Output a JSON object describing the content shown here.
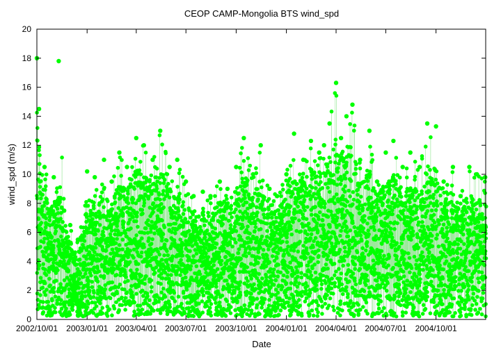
{
  "chart_data": {
    "type": "scatter",
    "title": "CEOP CAMP-Mongolia BTS  wind_spd",
    "xlabel": "Date",
    "ylabel": "wind_spd (m/s)",
    "ylim": [
      0,
      20
    ],
    "xlim": [
      "2002-10-01",
      "2004-12-31"
    ],
    "y_ticks": [
      "0",
      "2",
      "4",
      "6",
      "8",
      "10",
      "12",
      "14",
      "16",
      "18",
      "20"
    ],
    "x_ticks": [
      "2002/10/01",
      "2003/01/01",
      "2003/04/01",
      "2003/07/01",
      "2003/10/01",
      "2004/01/01",
      "2004/04/01",
      "2004/07/01",
      "2004/10/01"
    ],
    "grid": false,
    "legend": "none",
    "marker": "filled circle with connecting line",
    "series_color": "#00ff00",
    "line_color": "#9be89b",
    "series": [
      {
        "x": [
          "2002-10-01",
          "2002-10-05",
          "2002-10-15",
          "2002-11-01",
          "2002-11-10",
          "2002-11-20",
          "2002-12-01",
          "2002-12-15",
          "2003-01-01",
          "2003-01-15",
          "2003-02-01",
          "2003-02-15",
          "2003-03-01",
          "2003-03-15",
          "2003-04-01",
          "2003-04-15",
          "2003-05-01",
          "2003-05-15",
          "2003-06-01",
          "2003-06-15",
          "2003-07-01",
          "2003-07-15",
          "2003-08-01",
          "2003-08-15",
          "2003-09-01",
          "2003-09-15",
          "2003-10-01",
          "2003-10-15",
          "2003-11-01",
          "2003-11-15",
          "2003-12-01",
          "2003-12-15",
          "2004-01-01",
          "2004-01-15",
          "2004-02-01",
          "2004-02-15",
          "2004-03-01",
          "2004-03-10",
          "2004-03-20",
          "2004-04-01",
          "2004-04-10",
          "2004-04-20",
          "2004-05-01",
          "2004-05-15",
          "2004-06-01",
          "2004-06-15",
          "2004-07-01",
          "2004-07-15",
          "2004-08-01",
          "2004-08-15",
          "2004-09-01",
          "2004-09-15",
          "2004-10-01",
          "2004-10-15",
          "2004-11-01",
          "2004-11-15",
          "2004-12-01",
          "2004-12-15",
          "2004-12-30"
        ],
        "max": [
          18.0,
          14.5,
          10.5,
          9.8,
          17.8,
          7.5,
          6.5,
          5.5,
          10.2,
          9.8,
          11.0,
          9.5,
          11.5,
          10.5,
          12.5,
          12.0,
          11.0,
          13.0,
          10.5,
          11.0,
          9.5,
          8.5,
          8.8,
          8.5,
          9.5,
          9.0,
          10.5,
          12.5,
          10.0,
          12.0,
          9.0,
          8.5,
          10.0,
          12.8,
          11.0,
          12.3,
          11.5,
          12.0,
          13.5,
          16.3,
          12.5,
          14.0,
          14.8,
          11.0,
          13.0,
          9.5,
          11.5,
          12.3,
          10.5,
          11.5,
          10.5,
          13.5,
          13.3,
          9.5,
          10.5,
          8.5,
          10.5,
          10.0,
          9.8
        ],
        "high": [
          14.0,
          12.0,
          9.0,
          8.0,
          10.0,
          6.5,
          5.5,
          4.5,
          8.5,
          8.0,
          9.0,
          8.0,
          9.5,
          9.0,
          10.5,
          10.0,
          9.5,
          10.5,
          9.0,
          9.0,
          8.0,
          7.5,
          7.5,
          7.5,
          8.0,
          8.0,
          9.0,
          10.5,
          8.5,
          9.5,
          8.0,
          7.5,
          8.5,
          10.0,
          9.5,
          10.5,
          10.0,
          10.5,
          11.5,
          12.5,
          11.0,
          12.0,
          12.0,
          9.5,
          10.5,
          8.5,
          9.5,
          10.0,
          9.0,
          9.5,
          9.0,
          10.5,
          10.5,
          8.5,
          9.0,
          7.5,
          8.5,
          8.5,
          8.0
        ]
      }
    ]
  }
}
